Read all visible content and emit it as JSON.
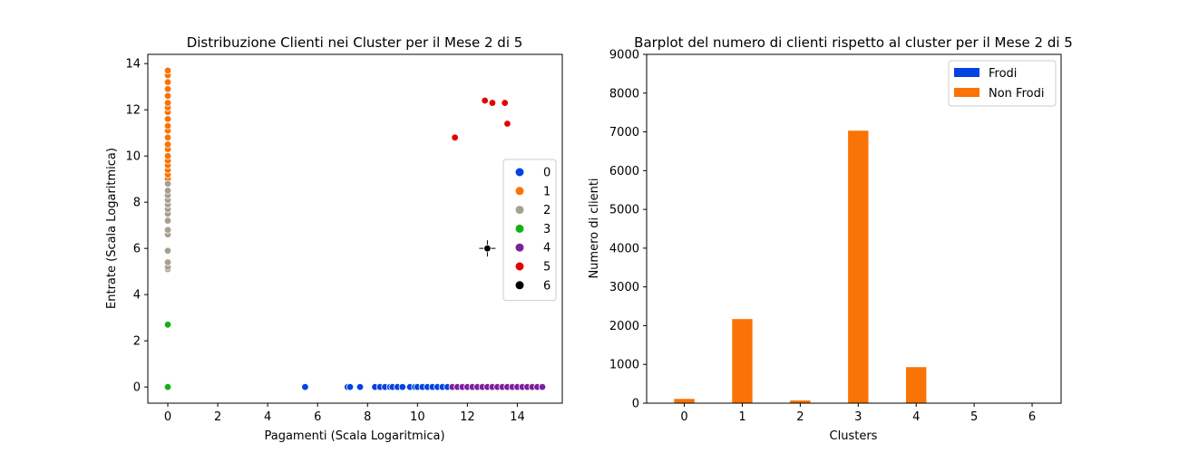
{
  "chart_data": [
    {
      "type": "scatter",
      "title": "Distribuzione Clienti nei Cluster per il Mese 2 di 5",
      "xlabel": "Pagamenti (Scala Logaritmica)",
      "ylabel": "Entrate (Scala Logaritmica)",
      "xlim": [
        -0.8,
        15.8
      ],
      "ylim": [
        -0.7,
        14.4
      ],
      "xticks": [
        0,
        2,
        4,
        6,
        8,
        10,
        12,
        14
      ],
      "yticks": [
        0,
        2,
        4,
        6,
        8,
        10,
        12,
        14
      ],
      "legend_position": "center-right",
      "series": [
        {
          "name": "0",
          "color": "#0343df",
          "points": [
            [
              5.5,
              0
            ],
            [
              7.2,
              0
            ],
            [
              7.3,
              0
            ],
            [
              7.7,
              0
            ],
            [
              8.3,
              0
            ],
            [
              8.5,
              0
            ],
            [
              8.7,
              0
            ],
            [
              8.9,
              0
            ],
            [
              9.0,
              0
            ],
            [
              9.2,
              0
            ],
            [
              9.4,
              0
            ],
            [
              9.7,
              0
            ],
            [
              9.9,
              0
            ],
            [
              10.0,
              0
            ],
            [
              10.2,
              0
            ],
            [
              10.4,
              0
            ],
            [
              10.6,
              0
            ],
            [
              10.8,
              0
            ],
            [
              11.0,
              0
            ],
            [
              11.2,
              0
            ]
          ]
        },
        {
          "name": "1",
          "color": "#f97306",
          "points": [
            [
              0,
              9.0
            ],
            [
              0,
              9.2
            ],
            [
              0,
              9.4
            ],
            [
              0,
              9.6
            ],
            [
              0,
              9.8
            ],
            [
              0,
              10.0
            ],
            [
              0,
              10.3
            ],
            [
              0,
              10.5
            ],
            [
              0,
              10.8
            ],
            [
              0,
              11.1
            ],
            [
              0,
              11.3
            ],
            [
              0,
              11.6
            ],
            [
              0,
              11.9
            ],
            [
              0,
              12.1
            ],
            [
              0,
              12.3
            ],
            [
              0,
              12.6
            ],
            [
              0,
              12.9
            ],
            [
              0,
              13.2
            ],
            [
              0,
              13.5
            ],
            [
              0,
              13.7
            ]
          ]
        },
        {
          "name": "2",
          "color": "#a6a08f",
          "points": [
            [
              0,
              5.1
            ],
            [
              0,
              5.2
            ],
            [
              0,
              5.4
            ],
            [
              0,
              5.9
            ],
            [
              0,
              6.6
            ],
            [
              0,
              6.8
            ],
            [
              0,
              7.2
            ],
            [
              0,
              7.5
            ],
            [
              0,
              7.7
            ],
            [
              0,
              7.9
            ],
            [
              0,
              8.1
            ],
            [
              0,
              8.3
            ],
            [
              0,
              8.5
            ],
            [
              0,
              8.8
            ]
          ]
        },
        {
          "name": "3",
          "color": "#15b01a",
          "points": [
            [
              0,
              2.7
            ],
            [
              0,
              0
            ]
          ]
        },
        {
          "name": "4",
          "color": "#7e1e9c",
          "points": [
            [
              11.4,
              0
            ],
            [
              11.6,
              0
            ],
            [
              11.8,
              0
            ],
            [
              12.0,
              0
            ],
            [
              12.2,
              0
            ],
            [
              12.4,
              0
            ],
            [
              12.6,
              0
            ],
            [
              12.8,
              0
            ],
            [
              13.0,
              0
            ],
            [
              13.2,
              0
            ],
            [
              13.4,
              0
            ],
            [
              13.6,
              0
            ],
            [
              13.8,
              0
            ],
            [
              14.0,
              0
            ],
            [
              14.2,
              0
            ],
            [
              14.4,
              0
            ],
            [
              14.6,
              0
            ],
            [
              14.8,
              0
            ],
            [
              15.0,
              0
            ]
          ]
        },
        {
          "name": "5",
          "color": "#e50000",
          "points": [
            [
              11.5,
              10.8
            ],
            [
              12.7,
              12.4
            ],
            [
              13.0,
              12.3
            ],
            [
              13.5,
              12.3
            ],
            [
              13.6,
              11.4
            ]
          ]
        },
        {
          "name": "6",
          "color": "#000000",
          "points": [
            [
              12.8,
              6.0
            ]
          ]
        }
      ]
    },
    {
      "type": "bar",
      "title": "Barplot del numero di clienti rispetto al cluster per il Mese 2 di 5",
      "xlabel": "Clusters",
      "ylabel": "Numero di clienti",
      "ylim": [
        0,
        9000
      ],
      "yticks": [
        0,
        1000,
        2000,
        3000,
        4000,
        5000,
        6000,
        7000,
        8000,
        9000
      ],
      "categories": [
        "0",
        "1",
        "2",
        "3",
        "4",
        "5",
        "6"
      ],
      "legend_position": "top-right",
      "series": [
        {
          "name": "Frodi",
          "color": "#0343df",
          "values": [
            0,
            0,
            0,
            0,
            0,
            0,
            0
          ]
        },
        {
          "name": "Non Frodi",
          "color": "#f97306",
          "values": [
            110,
            2170,
            70,
            7030,
            930,
            0,
            0
          ]
        }
      ]
    }
  ]
}
